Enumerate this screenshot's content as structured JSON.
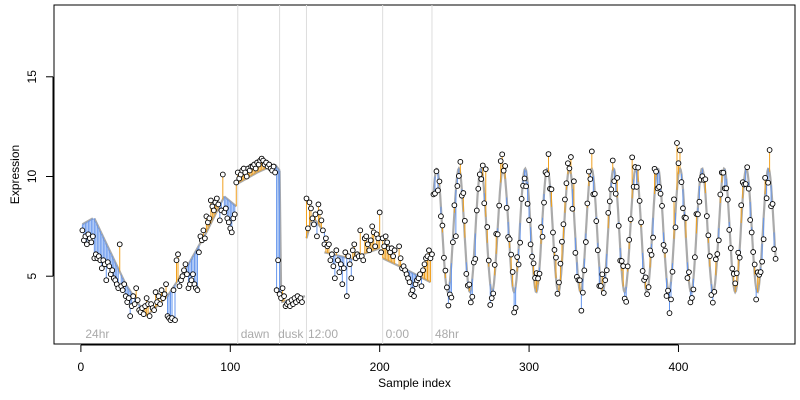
{
  "chart_data": {
    "type": "scatter",
    "title": "",
    "xlabel": "Sample index",
    "ylabel": "Expression",
    "xlim": [
      -18,
      478
    ],
    "ylim": [
      1.6,
      18.6
    ],
    "xticks": [
      0,
      100,
      200,
      300,
      400
    ],
    "yticks": [
      5,
      10,
      15
    ],
    "grid": false,
    "legend": "none",
    "colors": {
      "fitted_line": "#aaaaaa",
      "residual_positive": "#f0a01e",
      "residual_negative": "#6495ed",
      "point_stroke": "#000000",
      "point_fill": "#ffffff",
      "separator": "#dddddd",
      "annotation_text": "#aaaaaa"
    },
    "separators": [
      105,
      133,
      151,
      202,
      235
    ],
    "annotations": [
      {
        "x": 3,
        "text": "24hr"
      },
      {
        "x": 107,
        "text": "dawn"
      },
      {
        "x": 132,
        "text": "dusk"
      },
      {
        "x": 152,
        "text": "12:00"
      },
      {
        "x": 204,
        "text": "0:00"
      },
      {
        "x": 237,
        "text": "48hr"
      }
    ],
    "fitted_segments": [
      {
        "x": [
          1,
          8
        ],
        "y": [
          7.6,
          7.9
        ]
      },
      {
        "x": [
          9,
          30
        ],
        "y": [
          7.9,
          4.6
        ]
      },
      {
        "x": [
          30,
          44
        ],
        "y": [
          4.6,
          3.0
        ]
      },
      {
        "x": [
          44,
          58
        ],
        "y": [
          3.0,
          4.0
        ]
      },
      {
        "x": [
          58,
          72
        ],
        "y": [
          4.0,
          5.6
        ]
      },
      {
        "x": [
          72,
          84
        ],
        "y": [
          5.6,
          7.2
        ]
      },
      {
        "x": [
          84,
          96
        ],
        "y": [
          7.2,
          9.0
        ]
      },
      {
        "x": [
          96,
          104
        ],
        "y": [
          9.0,
          8.5
        ]
      },
      {
        "x": [
          104,
          118
        ],
        "y": [
          9.6,
          10.2
        ]
      },
      {
        "x": [
          118,
          130
        ],
        "y": [
          10.2,
          10.6
        ]
      },
      {
        "x": [
          130,
          133
        ],
        "y": [
          10.6,
          10.3
        ]
      },
      {
        "x": [
          133,
          134
        ],
        "y": [
          10.3,
          4.3
        ]
      },
      {
        "x": [
          134,
          150
        ],
        "y": [
          3.7,
          4.0
        ]
      },
      {
        "x": [
          151,
          155
        ],
        "y": [
          6.9,
          8.0
        ]
      },
      {
        "x": [
          155,
          163
        ],
        "y": [
          8.0,
          7.2
        ]
      },
      {
        "x": [
          163,
          185
        ],
        "y": [
          6.2,
          5.8
        ]
      },
      {
        "x": [
          185,
          200
        ],
        "y": [
          6.0,
          6.4
        ]
      },
      {
        "x": [
          202,
          216
        ],
        "y": [
          5.9,
          5.4
        ]
      },
      {
        "x": [
          216,
          234
        ],
        "y": [
          5.4,
          4.7
        ]
      }
    ],
    "oscillation": {
      "start": 236,
      "end": 465,
      "period": 14.8,
      "phase_shift": 0,
      "baseline": 4.2,
      "amplitude": 6.2,
      "points_per_unit": 1
    },
    "points": [
      [
        1,
        7.3
      ],
      [
        2,
        6.8
      ],
      [
        3,
        7.0
      ],
      [
        4,
        6.6
      ],
      [
        5,
        7.1
      ],
      [
        6,
        6.9
      ],
      [
        7,
        6.7
      ],
      [
        8,
        7.0
      ],
      [
        9,
        5.9
      ],
      [
        10,
        6.1
      ],
      [
        11,
        5.9
      ],
      [
        12,
        6.0
      ],
      [
        13,
        5.8
      ],
      [
        14,
        5.4
      ],
      [
        15,
        5.8
      ],
      [
        16,
        5.6
      ],
      [
        17,
        4.8
      ],
      [
        18,
        5.7
      ],
      [
        19,
        5.5
      ],
      [
        20,
        5.1
      ],
      [
        21,
        5.3
      ],
      [
        22,
        4.9
      ],
      [
        23,
        4.8
      ],
      [
        24,
        4.6
      ],
      [
        25,
        4.4
      ],
      [
        26,
        6.6
      ],
      [
        27,
        4.5
      ],
      [
        28,
        4.3
      ],
      [
        29,
        4.6
      ],
      [
        30,
        4.0
      ],
      [
        31,
        3.7
      ],
      [
        32,
        3.9
      ],
      [
        33,
        3.0
      ],
      [
        34,
        3.5
      ],
      [
        35,
        4.0
      ],
      [
        36,
        3.6
      ],
      [
        37,
        4.4
      ],
      [
        38,
        3.8
      ],
      [
        39,
        3.3
      ],
      [
        40,
        3.2
      ],
      [
        41,
        3.4
      ],
      [
        42,
        3.1
      ],
      [
        43,
        3.5
      ],
      [
        44,
        3.9
      ],
      [
        45,
        3.6
      ],
      [
        46,
        3.0
      ],
      [
        47,
        3.6
      ],
      [
        48,
        3.4
      ],
      [
        49,
        3.3
      ],
      [
        50,
        4.2
      ],
      [
        51,
        3.7
      ],
      [
        52,
        4.0
      ],
      [
        53,
        3.6
      ],
      [
        54,
        4.3
      ],
      [
        55,
        3.9
      ],
      [
        56,
        4.1
      ],
      [
        57,
        4.6
      ],
      [
        58,
        3.0
      ],
      [
        59,
        2.9
      ],
      [
        60,
        2.8
      ],
      [
        61,
        2.9
      ],
      [
        62,
        4.3
      ],
      [
        63,
        2.8
      ],
      [
        64,
        5.8
      ],
      [
        65,
        6.1
      ],
      [
        66,
        4.5
      ],
      [
        67,
        4.8
      ],
      [
        68,
        5.0
      ],
      [
        69,
        5.3
      ],
      [
        70,
        5.6
      ],
      [
        71,
        5.1
      ],
      [
        72,
        4.4
      ],
      [
        73,
        4.6
      ],
      [
        74,
        4.8
      ],
      [
        75,
        5.1
      ],
      [
        76,
        4.6
      ],
      [
        77,
        4.4
      ],
      [
        78,
        4.3
      ],
      [
        79,
        6.2
      ],
      [
        80,
        7.0
      ],
      [
        81,
        6.8
      ],
      [
        82,
        7.3
      ],
      [
        83,
        6.9
      ],
      [
        84,
        8.0
      ],
      [
        85,
        7.7
      ],
      [
        86,
        7.9
      ],
      [
        87,
        8.8
      ],
      [
        88,
        8.5
      ],
      [
        89,
        8.3
      ],
      [
        90,
        8.7
      ],
      [
        91,
        8.9
      ],
      [
        92,
        8.6
      ],
      [
        93,
        7.8
      ],
      [
        94,
        8.3
      ],
      [
        95,
        10.1
      ],
      [
        96,
        8.2
      ],
      [
        97,
        8.4
      ],
      [
        98,
        7.9
      ],
      [
        99,
        7.7
      ],
      [
        100,
        7.4
      ],
      [
        101,
        7.2
      ],
      [
        102,
        7.9
      ],
      [
        103,
        8.1
      ],
      [
        104,
        9.7
      ],
      [
        105,
        10.2
      ],
      [
        106,
        9.9
      ],
      [
        107,
        10.1
      ],
      [
        108,
        10.3
      ],
      [
        109,
        10.4
      ],
      [
        110,
        10.2
      ],
      [
        111,
        10.0
      ],
      [
        112,
        10.4
      ],
      [
        113,
        10.3
      ],
      [
        114,
        10.5
      ],
      [
        115,
        10.5
      ],
      [
        116,
        10.6
      ],
      [
        117,
        10.4
      ],
      [
        118,
        10.7
      ],
      [
        119,
        10.6
      ],
      [
        120,
        10.8
      ],
      [
        121,
        10.9
      ],
      [
        122,
        10.8
      ],
      [
        123,
        10.6
      ],
      [
        124,
        10.7
      ],
      [
        125,
        10.5
      ],
      [
        126,
        10.6
      ],
      [
        127,
        10.4
      ],
      [
        128,
        10.3
      ],
      [
        129,
        10.5
      ],
      [
        130,
        10.2
      ],
      [
        131,
        4.3
      ],
      [
        132,
        5.8
      ],
      [
        133,
        4.1
      ],
      [
        134,
        3.9
      ],
      [
        135,
        4.4
      ],
      [
        136,
        4.0
      ],
      [
        137,
        3.5
      ],
      [
        138,
        3.6
      ],
      [
        139,
        3.7
      ],
      [
        140,
        3.5
      ],
      [
        141,
        3.8
      ],
      [
        142,
        3.6
      ],
      [
        143,
        3.9
      ],
      [
        144,
        3.7
      ],
      [
        145,
        4.0
      ],
      [
        146,
        3.8
      ],
      [
        147,
        3.9
      ],
      [
        148,
        3.7
      ],
      [
        151,
        8.9
      ],
      [
        152,
        7.4
      ],
      [
        153,
        8.7
      ],
      [
        154,
        8.4
      ],
      [
        155,
        7.9
      ],
      [
        156,
        7.6
      ],
      [
        157,
        8.1
      ],
      [
        158,
        7.0
      ],
      [
        159,
        8.6
      ],
      [
        160,
        8.2
      ],
      [
        161,
        7.8
      ],
      [
        162,
        7.3
      ],
      [
        163,
        6.6
      ],
      [
        164,
        6.9
      ],
      [
        165,
        6.5
      ],
      [
        166,
        6.6
      ],
      [
        167,
        5.8
      ],
      [
        168,
        6.1
      ],
      [
        169,
        5.5
      ],
      [
        170,
        4.9
      ],
      [
        171,
        6.3
      ],
      [
        172,
        5.8
      ],
      [
        173,
        5.2
      ],
      [
        174,
        5.6
      ],
      [
        175,
        4.6
      ],
      [
        176,
        5.4
      ],
      [
        177,
        6.2
      ],
      [
        178,
        4.0
      ],
      [
        179,
        6.0
      ],
      [
        180,
        5.6
      ],
      [
        181,
        4.9
      ],
      [
        182,
        6.3
      ],
      [
        183,
        6.6
      ],
      [
        184,
        5.9
      ],
      [
        185,
        6.1
      ],
      [
        186,
        6.0
      ],
      [
        187,
        7.3
      ],
      [
        188,
        6.0
      ],
      [
        189,
        5.8
      ],
      [
        190,
        6.9
      ],
      [
        191,
        7.0
      ],
      [
        192,
        6.6
      ],
      [
        193,
        6.3
      ],
      [
        194,
        6.8
      ],
      [
        195,
        7.5
      ],
      [
        196,
        7.2
      ],
      [
        197,
        6.5
      ],
      [
        198,
        7.1
      ],
      [
        199,
        6.9
      ],
      [
        200,
        8.2
      ],
      [
        201,
        6.2
      ],
      [
        202,
        6.9
      ],
      [
        203,
        6.5
      ],
      [
        204,
        7.0
      ],
      [
        205,
        6.7
      ],
      [
        206,
        6.4
      ],
      [
        207,
        6.2
      ],
      [
        208,
        6.4
      ],
      [
        209,
        6.0
      ],
      [
        210,
        6.3
      ],
      [
        213,
        6.5
      ],
      [
        214,
        5.9
      ],
      [
        215,
        5.4
      ],
      [
        216,
        5.5
      ],
      [
        217,
        5.3
      ],
      [
        218,
        5.1
      ],
      [
        219,
        4.9
      ],
      [
        220,
        4.7
      ],
      [
        221,
        4.1
      ],
      [
        222,
        4.3
      ],
      [
        223,
        4.0
      ],
      [
        224,
        4.6
      ],
      [
        225,
        4.8
      ],
      [
        226,
        4.9
      ],
      [
        227,
        5.1
      ],
      [
        228,
        4.5
      ],
      [
        229,
        5.3
      ],
      [
        230,
        5.6
      ],
      [
        231,
        5.9
      ],
      [
        232,
        6.0
      ],
      [
        233,
        6.3
      ],
      [
        234,
        5.9
      ],
      [
        235,
        6.1
      ]
    ]
  }
}
